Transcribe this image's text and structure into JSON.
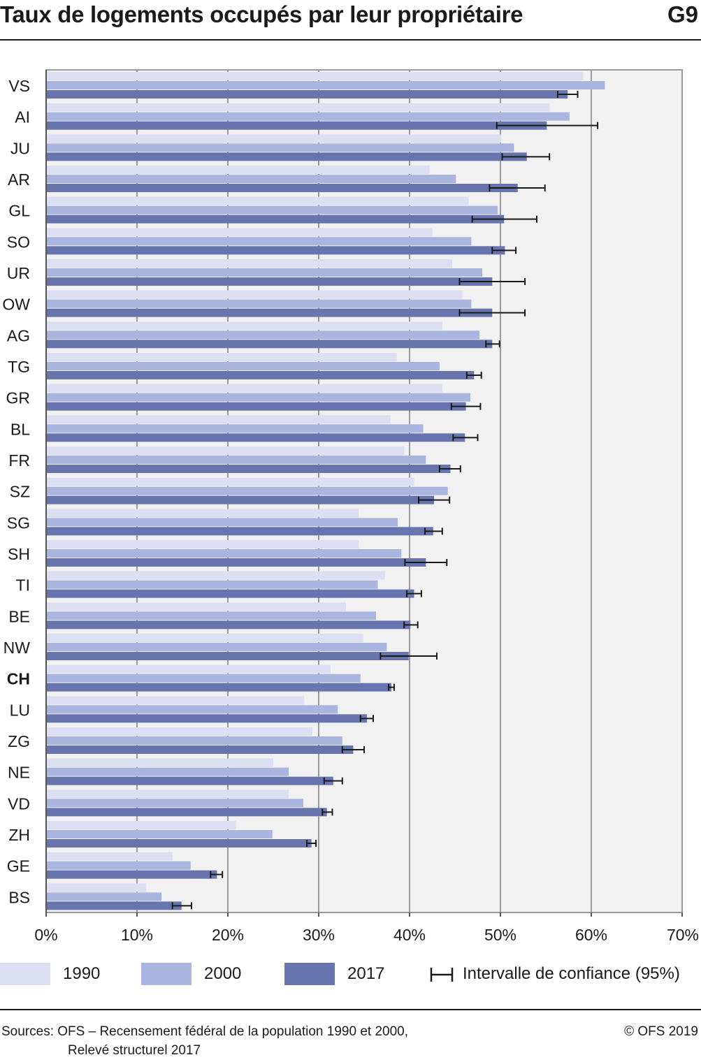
{
  "header": {
    "title": "Taux de logements occupés par leur propriétaire",
    "figure_number": "G9"
  },
  "chart_data": {
    "type": "bar",
    "orientation": "horizontal",
    "title": "Taux de logements occupés par leur propriétaire",
    "categories": [
      "VS",
      "AI",
      "JU",
      "AR",
      "GL",
      "SO",
      "UR",
      "OW",
      "AG",
      "TG",
      "GR",
      "BL",
      "FR",
      "SZ",
      "SG",
      "SH",
      "TI",
      "BE",
      "NW",
      "CH",
      "LU",
      "ZG",
      "NE",
      "VD",
      "ZH",
      "GE",
      "BS"
    ],
    "highlight_category": "CH",
    "series": [
      {
        "name": "1990",
        "color": "#dcdff2",
        "values": [
          59.1,
          55.4,
          50.1,
          42.2,
          46.5,
          42.5,
          44.7,
          45.8,
          43.6,
          38.6,
          43.6,
          37.9,
          39.4,
          40.5,
          34.4,
          34.4,
          37.3,
          33.0,
          34.9,
          31.3,
          28.4,
          29.3,
          25.0,
          26.7,
          20.9,
          13.9,
          11.0
        ]
      },
      {
        "name": "2000",
        "color": "#a9b5df",
        "values": [
          61.5,
          57.6,
          51.5,
          45.1,
          49.7,
          46.8,
          48.0,
          46.8,
          47.7,
          43.3,
          46.7,
          41.5,
          41.8,
          44.2,
          38.7,
          39.1,
          36.5,
          36.3,
          37.5,
          34.6,
          32.1,
          32.6,
          26.7,
          28.3,
          24.9,
          15.9,
          12.7
        ]
      },
      {
        "name": "2017",
        "color": "#6874ad",
        "values": [
          57.4,
          55.1,
          52.9,
          51.9,
          50.4,
          50.5,
          49.1,
          49.1,
          49.1,
          47.1,
          46.2,
          46.1,
          44.5,
          42.7,
          42.6,
          41.8,
          40.5,
          40.1,
          39.9,
          38.0,
          35.3,
          33.8,
          31.6,
          30.9,
          29.2,
          18.8,
          14.9
        ]
      }
    ],
    "confidence_interval_2017": [
      [
        56.3,
        58.5
      ],
      [
        49.6,
        60.7
      ],
      [
        50.2,
        55.4
      ],
      [
        48.8,
        54.9
      ],
      [
        46.9,
        54.0
      ],
      [
        49.1,
        51.7
      ],
      [
        45.5,
        52.7
      ],
      [
        45.5,
        52.7
      ],
      [
        48.4,
        49.9
      ],
      [
        46.3,
        47.9
      ],
      [
        44.6,
        47.8
      ],
      [
        44.8,
        47.5
      ],
      [
        43.3,
        45.6
      ],
      [
        41.0,
        44.4
      ],
      [
        41.7,
        43.6
      ],
      [
        39.5,
        44.1
      ],
      [
        39.7,
        41.3
      ],
      [
        39.4,
        40.9
      ],
      [
        36.8,
        43.0
      ],
      [
        37.7,
        38.3
      ],
      [
        34.6,
        36.0
      ],
      [
        32.6,
        35.0
      ],
      [
        30.6,
        32.6
      ],
      [
        30.4,
        31.5
      ],
      [
        28.7,
        29.7
      ],
      [
        18.1,
        19.4
      ],
      [
        13.9,
        16.0
      ]
    ],
    "x_axis": {
      "ticks": [
        0,
        10,
        20,
        30,
        40,
        50,
        60,
        70
      ],
      "tick_labels": [
        "0%",
        "10%",
        "20%",
        "30%",
        "40%",
        "50%",
        "60%",
        "70%"
      ],
      "range": [
        0,
        70
      ]
    },
    "grid": true,
    "legend_position": "bottom",
    "plot_background": "#f1f1f1",
    "grid_color": "#9a9a9a",
    "ci_color": "#1a1a1a"
  },
  "legend": {
    "items": [
      {
        "label": "1990",
        "color": "#dcdff2"
      },
      {
        "label": "2000",
        "color": "#a9b5df"
      },
      {
        "label": "2017",
        "color": "#6874ad"
      }
    ],
    "ci_label": "Intervalle de confiance (95%)"
  },
  "footer": {
    "source_line1": "Sources: OFS – Recensement fédéral de la population 1990 et 2000,",
    "source_line2": "Relevé structurel 2017",
    "copyright": "© OFS 2019"
  }
}
